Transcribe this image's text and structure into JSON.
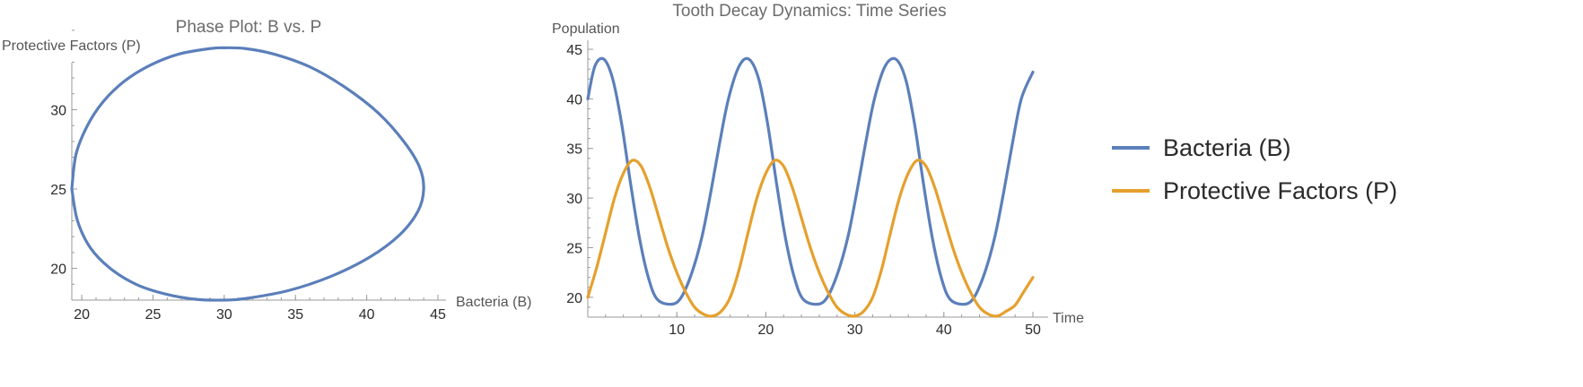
{
  "chart_data": [
    {
      "type": "line",
      "title": "Phase Plot: B vs. P",
      "xlabel": "Bacteria (B)",
      "ylabel": "Protective Factors (P)",
      "xlim": [
        19.3,
        45
      ],
      "ylim": [
        18,
        35.5
      ],
      "xticks": [
        20,
        25,
        30,
        35,
        40,
        45
      ],
      "yticks": [
        20,
        25,
        30
      ],
      "x_minor_step": 1,
      "y_minor_step": 1,
      "grid": false,
      "series": [
        {
          "color": "#5b7fba",
          "points": [
            [
              19.3,
              25.0
            ],
            [
              19.6,
              27.2
            ],
            [
              20.4,
              29.0
            ],
            [
              21.5,
              30.5
            ],
            [
              23.0,
              31.8
            ],
            [
              24.8,
              32.8
            ],
            [
              26.8,
              33.5
            ],
            [
              29.0,
              33.85
            ],
            [
              30.0,
              33.9
            ],
            [
              31.5,
              33.85
            ],
            [
              33.5,
              33.5
            ],
            [
              36.0,
              32.7
            ],
            [
              38.5,
              31.4
            ],
            [
              40.8,
              29.8
            ],
            [
              42.6,
              28.0
            ],
            [
              43.7,
              26.4
            ],
            [
              44.0,
              25.0
            ],
            [
              43.6,
              23.6
            ],
            [
              42.3,
              22.1
            ],
            [
              40.2,
              20.7
            ],
            [
              37.5,
              19.5
            ],
            [
              34.5,
              18.6
            ],
            [
              31.5,
              18.1
            ],
            [
              30.0,
              18.0
            ],
            [
              28.0,
              18.05
            ],
            [
              25.8,
              18.4
            ],
            [
              23.8,
              19.0
            ],
            [
              22.0,
              20.0
            ],
            [
              20.6,
              21.3
            ],
            [
              19.7,
              23.0
            ],
            [
              19.3,
              25.0
            ]
          ]
        }
      ]
    },
    {
      "type": "line",
      "title": "Tooth Decay Dynamics: Time Series",
      "xlabel": "Time",
      "ylabel": "Population",
      "xlim": [
        0,
        50
      ],
      "ylim": [
        18,
        45
      ],
      "xticks": [
        10,
        20,
        30,
        40,
        50
      ],
      "yticks": [
        20,
        25,
        30,
        35,
        40,
        45
      ],
      "x_minor_step": 2,
      "y_minor_step": 1,
      "grid": false,
      "legend_position": "right",
      "series": [
        {
          "name": "Bacteria (B)",
          "color": "#5b7fba",
          "x": [
            0,
            0.8,
            1.8,
            2.8,
            3.8,
            4.8,
            5.8,
            6.8,
            7.8,
            9.4,
            10.5,
            11.7,
            12.8,
            13.8,
            14.8,
            15.8,
            17.0,
            18.1,
            19.2,
            20.2,
            21.2,
            22.2,
            23.2,
            24.2,
            25.8,
            26.9,
            28.1,
            29.2,
            30.2,
            31.2,
            32.2,
            33.4,
            34.6,
            35.7,
            36.7,
            37.7,
            38.7,
            39.7,
            40.7,
            42.3,
            43.4,
            44.6,
            45.7,
            46.7,
            47.7,
            48.7,
            50.0
          ],
          "values": [
            40.0,
            43.3,
            44.0,
            42.0,
            37.5,
            31.5,
            26.0,
            22.0,
            19.8,
            19.3,
            20.0,
            22.5,
            26.0,
            30.5,
            35.5,
            40.0,
            43.3,
            44.0,
            42.0,
            37.5,
            31.5,
            26.0,
            22.0,
            19.8,
            19.3,
            20.0,
            22.5,
            26.0,
            30.5,
            35.5,
            40.0,
            43.3,
            44.0,
            42.0,
            37.5,
            31.5,
            26.0,
            22.0,
            19.8,
            19.3,
            20.0,
            22.5,
            26.0,
            30.5,
            35.5,
            40.0,
            42.7
          ]
        },
        {
          "name": "Protective Factors (P)",
          "color": "#e5a02d",
          "x": [
            0,
            1.0,
            2.0,
            3.0,
            4.0,
            5.0,
            6.0,
            7.0,
            8.0,
            9.0,
            10.0,
            11.0,
            12.0,
            13.0,
            14.0,
            15.0,
            16.0,
            17.0,
            18.0,
            19.0,
            20.0,
            21.0,
            22.0,
            23.0,
            24.0,
            25.0,
            26.0,
            27.0,
            28.0,
            29.0,
            30.0,
            31.0,
            32.0,
            33.0,
            34.0,
            35.0,
            36.0,
            37.0,
            38.0,
            39.0,
            40.0,
            41.0,
            42.0,
            43.0,
            44.0,
            45.0,
            46.0,
            47.0,
            48.0,
            49.0,
            50.0
          ],
          "values": [
            20.0,
            23.0,
            26.5,
            30.0,
            32.5,
            33.8,
            33.2,
            31.0,
            28.0,
            25.0,
            22.5,
            20.5,
            19.0,
            18.3,
            18.1,
            18.6,
            20.0,
            22.8,
            26.5,
            30.0,
            32.5,
            33.8,
            33.2,
            31.0,
            28.0,
            25.0,
            22.5,
            20.5,
            19.0,
            18.3,
            18.1,
            18.6,
            20.0,
            22.8,
            26.5,
            30.0,
            32.5,
            33.8,
            33.2,
            31.0,
            28.0,
            25.0,
            22.5,
            20.5,
            19.0,
            18.3,
            18.1,
            18.6,
            19.2,
            20.6,
            22.0
          ]
        }
      ]
    }
  ]
}
